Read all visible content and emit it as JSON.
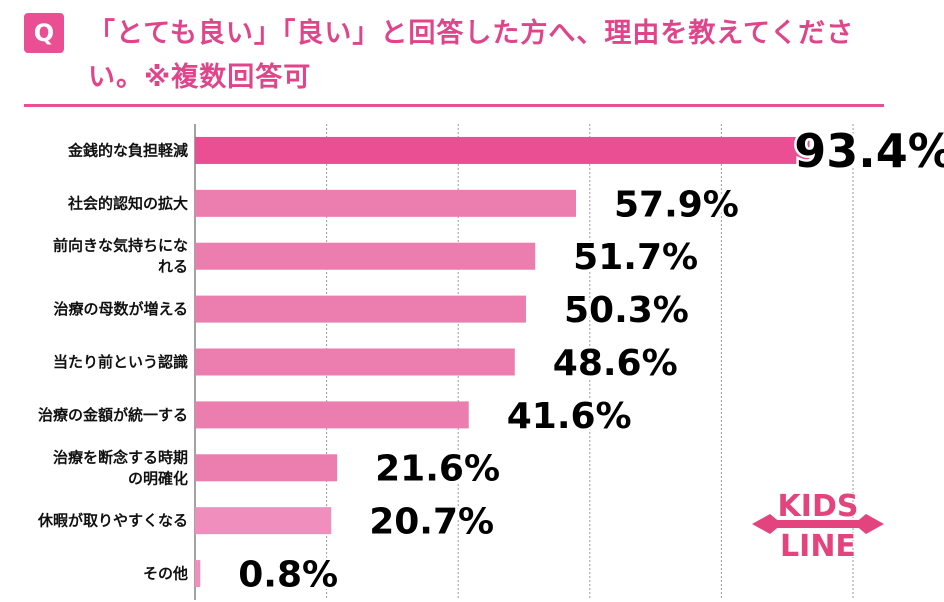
{
  "question": {
    "badge": "Q",
    "text": "「とても良い」「良い」と回答した方へ、理由を教えてください。※複数回答可"
  },
  "colors": {
    "accent": "#ea4f93",
    "bar_top": "#ea4f93",
    "bar": "#eb7daf",
    "bar_light": "#f08fbd"
  },
  "logo": {
    "line1": "KIDS",
    "line2": "LINE"
  },
  "chart_data": {
    "type": "bar",
    "orientation": "horizontal",
    "categories": [
      [
        "金銭的な負担軽減"
      ],
      [
        "社会的認知の拡大"
      ],
      [
        "前向きな気持ちにな",
        "れる"
      ],
      [
        "治療の母数が増える"
      ],
      [
        "当たり前という認識"
      ],
      [
        "治療の金額が統一する"
      ],
      [
        "治療を断念する時期",
        "の明確化"
      ],
      [
        "休暇が取りやすくなる"
      ],
      [
        "その他"
      ]
    ],
    "values": [
      93.4,
      57.9,
      51.7,
      50.3,
      48.6,
      41.6,
      21.6,
      20.7,
      0.8
    ],
    "labels": [
      "93.4%",
      "57.9%",
      "51.7%",
      "50.3%",
      "48.6%",
      "41.6%",
      "21.6%",
      "20.7%",
      "0.8%"
    ],
    "xlim": [
      0,
      100
    ],
    "grid": true
  }
}
